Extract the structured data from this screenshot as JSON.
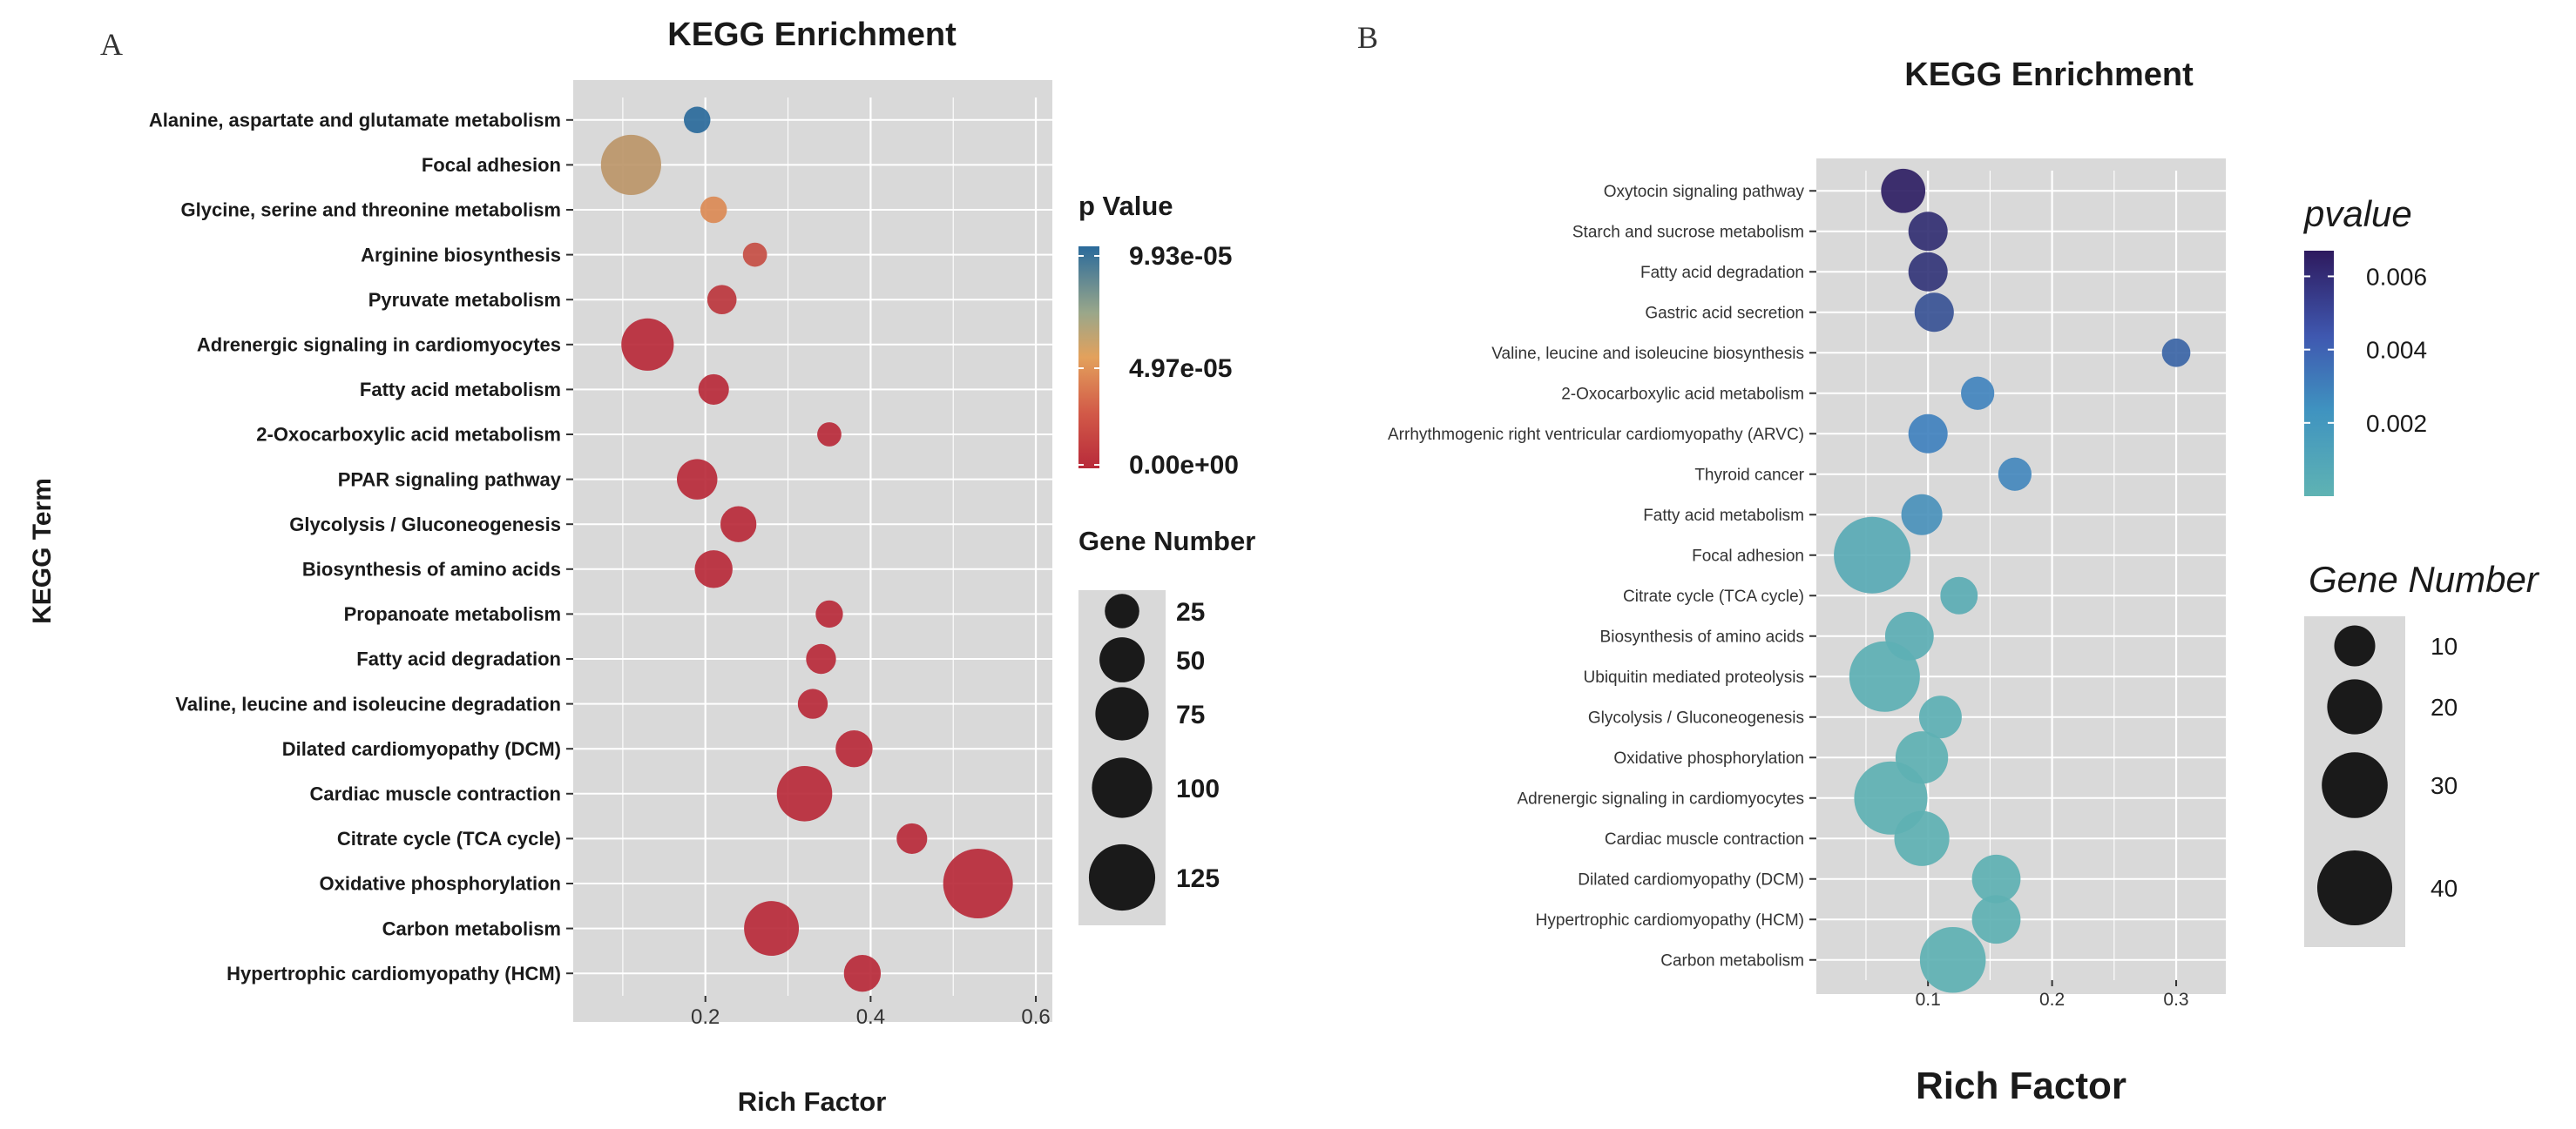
{
  "chart_data": [
    {
      "panel": "A",
      "type": "scatter",
      "title": "KEGG Enrichment",
      "xlabel": "Rich Factor",
      "ylabel": "KEGG Term",
      "xlim": [
        0.04,
        0.62
      ],
      "xticks": [
        0.2,
        0.4,
        0.6
      ],
      "xtick_labels": [
        "0.2",
        "0.4",
        "0.6"
      ],
      "grid": true,
      "color_legend": {
        "title": "p Value",
        "labels": [
          "9.93e-05",
          "4.97e-05",
          "0.00e+00"
        ],
        "min": 0,
        "max": 9.93e-05,
        "colors": [
          "#b82a3a",
          "#e3a15c",
          "#2a6a9b"
        ]
      },
      "size_legend": {
        "title": "Gene Number",
        "values": [
          25,
          50,
          75,
          100,
          125
        ],
        "labels": [
          "25",
          "50",
          "75",
          "100",
          "125"
        ]
      },
      "points": [
        {
          "term": "Alanine, aspartate and glutamate metabolism",
          "rich_factor": 0.19,
          "gene_number": 12,
          "p_value": 9.93e-05
        },
        {
          "term": "Focal adhesion",
          "rich_factor": 0.11,
          "gene_number": 100,
          "p_value": 6e-05
        },
        {
          "term": "Glycine, serine and threonine metabolism",
          "rich_factor": 0.21,
          "gene_number": 12,
          "p_value": 4e-05
        },
        {
          "term": "Arginine biosynthesis",
          "rich_factor": 0.26,
          "gene_number": 9,
          "p_value": 1.5e-05
        },
        {
          "term": "Pyruvate metabolism",
          "rich_factor": 0.22,
          "gene_number": 16,
          "p_value": 5e-06
        },
        {
          "term": "Adrenergic signaling in cardiomyocytes",
          "rich_factor": 0.13,
          "gene_number": 72,
          "p_value": 0
        },
        {
          "term": "Fatty acid metabolism",
          "rich_factor": 0.21,
          "gene_number": 18,
          "p_value": 0
        },
        {
          "term": "2-Oxocarboxylic acid metabolism",
          "rich_factor": 0.35,
          "gene_number": 9,
          "p_value": 0
        },
        {
          "term": "PPAR signaling pathway",
          "rich_factor": 0.19,
          "gene_number": 38,
          "p_value": 0
        },
        {
          "term": "Glycolysis / Gluconeogenesis",
          "rich_factor": 0.24,
          "gene_number": 28,
          "p_value": 0
        },
        {
          "term": "Biosynthesis of amino acids",
          "rich_factor": 0.21,
          "gene_number": 32,
          "p_value": 0
        },
        {
          "term": "Propanoate metabolism",
          "rich_factor": 0.35,
          "gene_number": 13,
          "p_value": 0
        },
        {
          "term": "Fatty acid degradation",
          "rich_factor": 0.34,
          "gene_number": 17,
          "p_value": 0
        },
        {
          "term": "Valine, leucine and isoleucine degradation",
          "rich_factor": 0.33,
          "gene_number": 17,
          "p_value": 0
        },
        {
          "term": "Dilated cardiomyopathy (DCM)",
          "rich_factor": 0.38,
          "gene_number": 30,
          "p_value": 0
        },
        {
          "term": "Cardiac muscle contraction",
          "rich_factor": 0.32,
          "gene_number": 82,
          "p_value": 0
        },
        {
          "term": "Citrate cycle (TCA cycle)",
          "rich_factor": 0.45,
          "gene_number": 18,
          "p_value": 0
        },
        {
          "term": "Oxidative phosphorylation",
          "rich_factor": 0.53,
          "gene_number": 140,
          "p_value": 0
        },
        {
          "term": "Carbon metabolism",
          "rich_factor": 0.28,
          "gene_number": 80,
          "p_value": 0
        },
        {
          "term": "Hypertrophic cardiomyopathy (HCM)",
          "rich_factor": 0.39,
          "gene_number": 30,
          "p_value": 0
        }
      ]
    },
    {
      "panel": "B",
      "type": "scatter",
      "title": "KEGG Enrichment",
      "xlabel": "Rich Factor",
      "ylabel": "",
      "xlim": [
        0.01,
        0.34
      ],
      "xticks": [
        0.1,
        0.2,
        0.3
      ],
      "xtick_labels": [
        "0.1",
        "0.2",
        "0.3"
      ],
      "grid": true,
      "color_legend": {
        "title": "pvalue",
        "labels": [
          "0.006",
          "0.004",
          "0.002"
        ],
        "values": [
          0.006,
          0.004,
          0.002
        ],
        "min": 0,
        "max": 0.0067,
        "colors": [
          "#5fb3b3",
          "#3f7fbf",
          "#2e1a5e"
        ]
      },
      "size_legend": {
        "title": "Gene Number",
        "values": [
          10,
          20,
          30,
          40
        ],
        "labels": [
          "10",
          "20",
          "30",
          "40"
        ]
      },
      "points": [
        {
          "term": "Oxytocin signaling pathway",
          "rich_factor": 0.08,
          "gene_number": 12,
          "p_value": 0.0065
        },
        {
          "term": "Starch and sucrose metabolism",
          "rich_factor": 0.1,
          "gene_number": 9,
          "p_value": 0.006
        },
        {
          "term": "Fatty acid degradation",
          "rich_factor": 0.1,
          "gene_number": 9,
          "p_value": 0.0058
        },
        {
          "term": "Gastric acid secretion",
          "rich_factor": 0.105,
          "gene_number": 9,
          "p_value": 0.0048
        },
        {
          "term": "Valine, leucine and isoleucine biosynthesis",
          "rich_factor": 0.3,
          "gene_number": 4,
          "p_value": 0.0042
        },
        {
          "term": "2-Oxocarboxylic acid metabolism",
          "rich_factor": 0.14,
          "gene_number": 6,
          "p_value": 0.003
        },
        {
          "term": "Arrhythmogenic right ventricular cardiomyopathy (ARVC)",
          "rich_factor": 0.1,
          "gene_number": 9,
          "p_value": 0.0032
        },
        {
          "term": "Thyroid cancer",
          "rich_factor": 0.17,
          "gene_number": 6,
          "p_value": 0.0028
        },
        {
          "term": "Fatty acid metabolism",
          "rich_factor": 0.095,
          "gene_number": 10,
          "p_value": 0.0022
        },
        {
          "term": "Focal adhesion",
          "rich_factor": 0.055,
          "gene_number": 42,
          "p_value": 0.0006
        },
        {
          "term": "Citrate cycle (TCA cycle)",
          "rich_factor": 0.125,
          "gene_number": 8,
          "p_value": 0.0004
        },
        {
          "term": "Biosynthesis of amino acids",
          "rich_factor": 0.085,
          "gene_number": 15,
          "p_value": 0.0003
        },
        {
          "term": "Ubiquitin mediated proteolysis",
          "rich_factor": 0.065,
          "gene_number": 35,
          "p_value": 0.0002
        },
        {
          "term": "Glycolysis / Gluconeogenesis",
          "rich_factor": 0.11,
          "gene_number": 11,
          "p_value": 0.0002
        },
        {
          "term": "Oxidative phosphorylation",
          "rich_factor": 0.095,
          "gene_number": 18,
          "p_value": 0.0001
        },
        {
          "term": "Adrenergic signaling in cardiomyocytes",
          "rich_factor": 0.07,
          "gene_number": 38,
          "p_value": 0.0001
        },
        {
          "term": "Cardiac muscle contraction",
          "rich_factor": 0.095,
          "gene_number": 20,
          "p_value": 0.0001
        },
        {
          "term": "Dilated cardiomyopathy (DCM)",
          "rich_factor": 0.155,
          "gene_number": 15,
          "p_value": 0.0001
        },
        {
          "term": "Hypertrophic cardiomyopathy (HCM)",
          "rich_factor": 0.155,
          "gene_number": 15,
          "p_value": 0.0001
        },
        {
          "term": "Carbon metabolism",
          "rich_factor": 0.12,
          "gene_number": 30,
          "p_value": 0.0001
        }
      ]
    }
  ]
}
